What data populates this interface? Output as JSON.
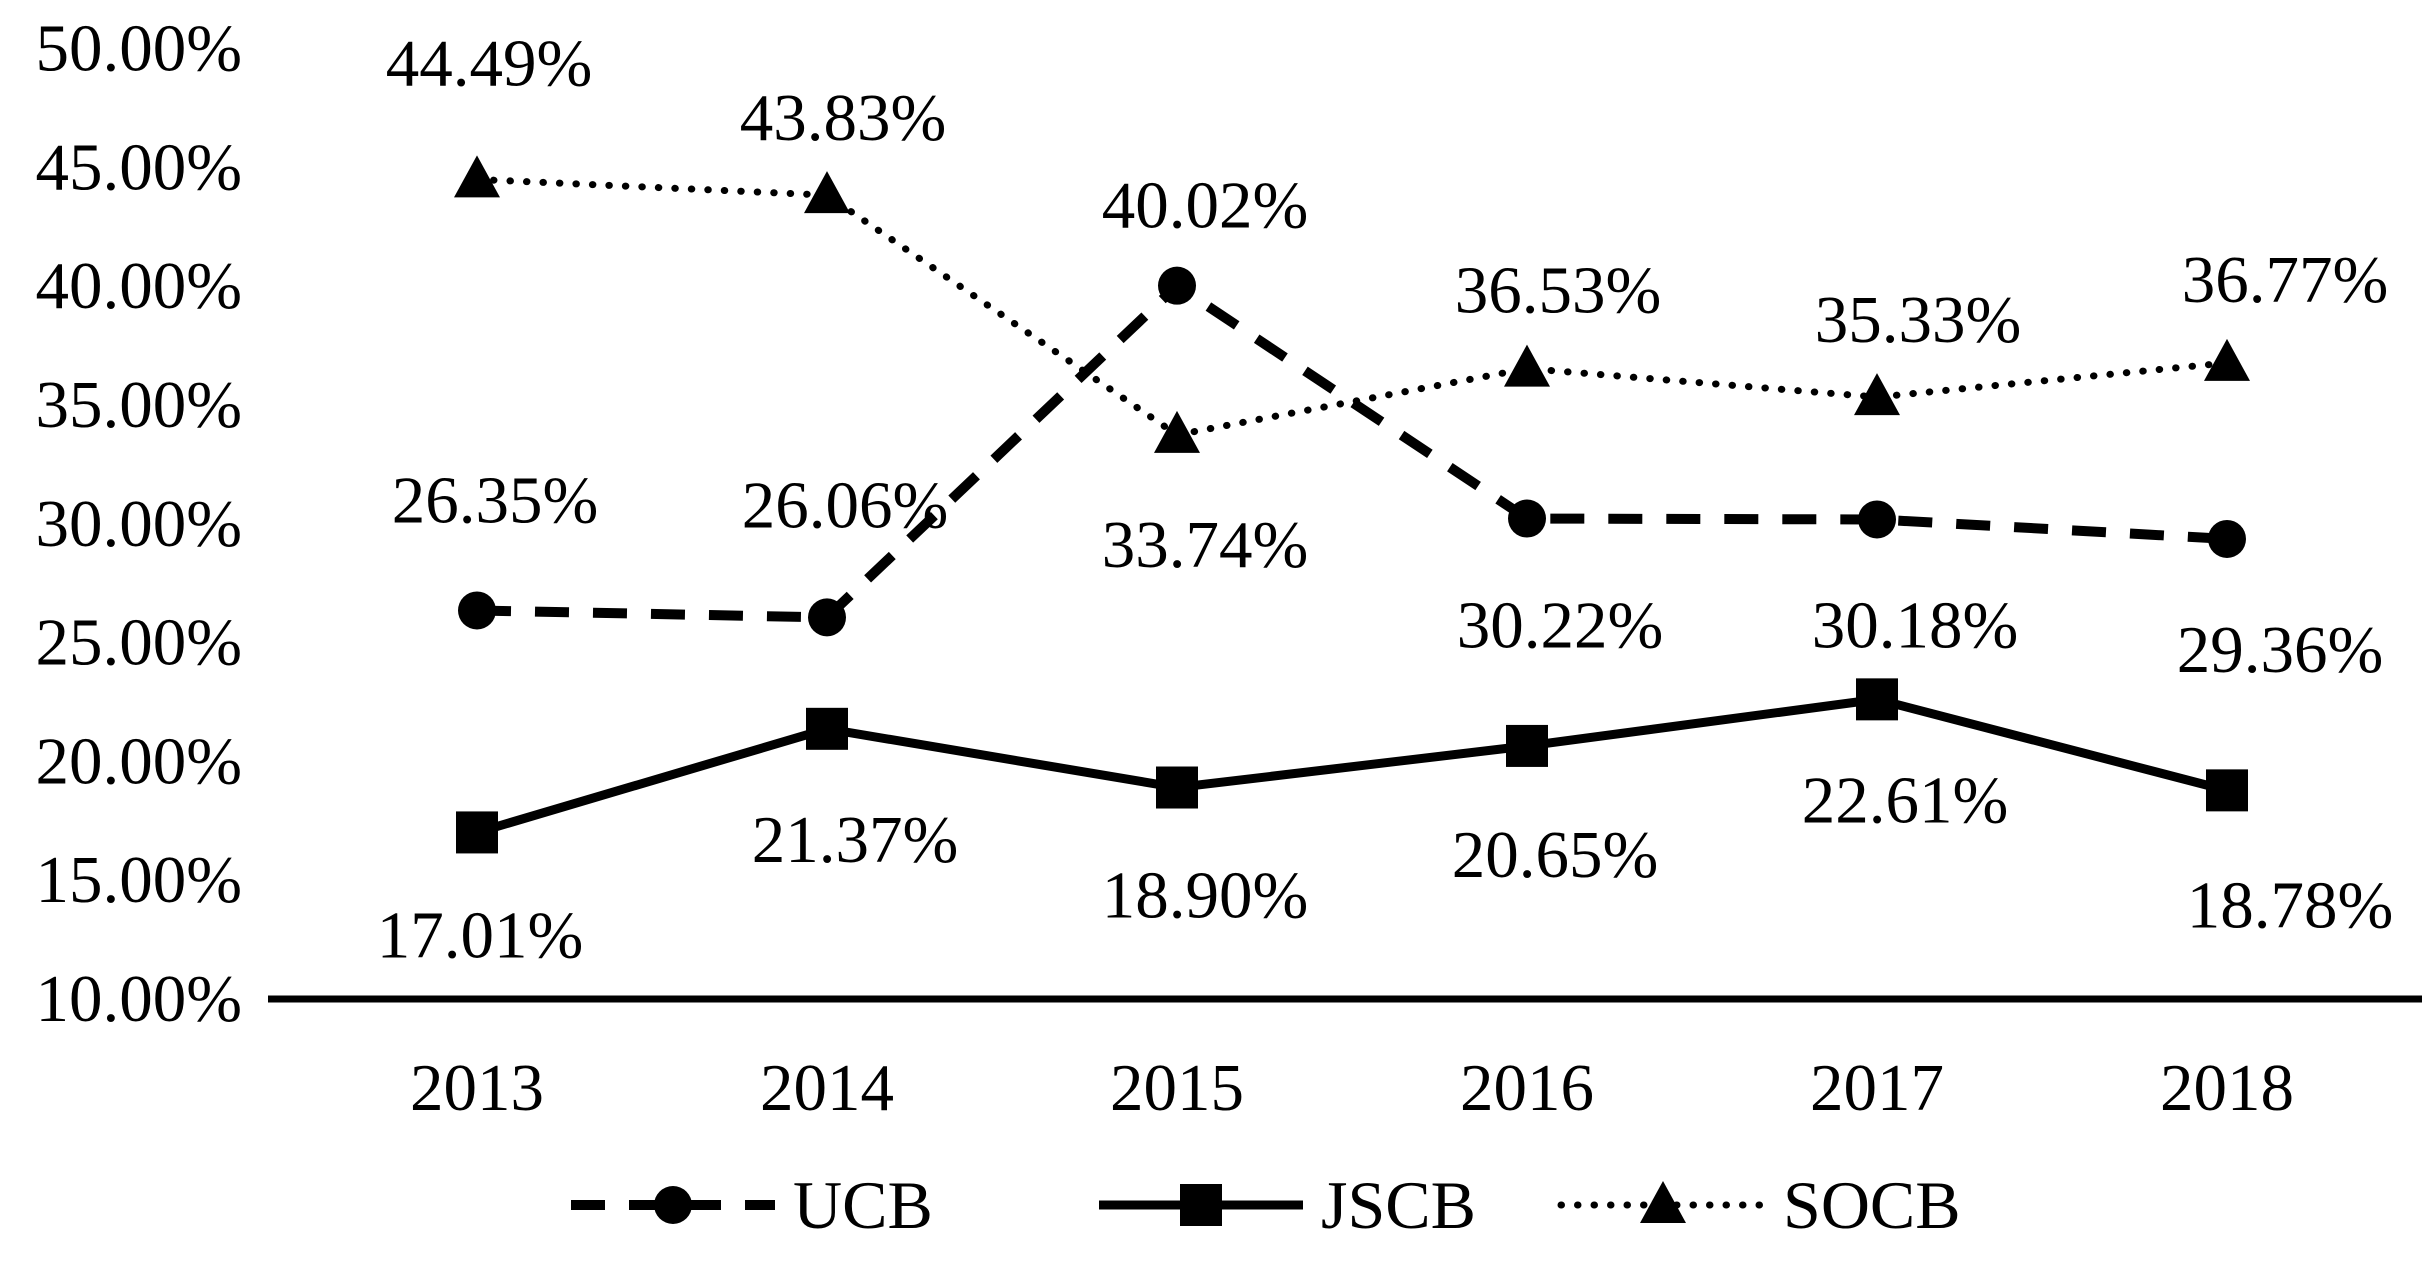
{
  "chart_data": {
    "type": "line",
    "title": "",
    "xlabel": "",
    "ylabel": "",
    "categories": [
      "2013",
      "2014",
      "2015",
      "2016",
      "2017",
      "2018"
    ],
    "y_ticks": [
      "50.00%",
      "45.00%",
      "40.00%",
      "35.00%",
      "30.00%",
      "25.00%",
      "20.00%",
      "15.00%",
      "10.00%"
    ],
    "ylim": [
      10,
      50
    ],
    "grid": false,
    "legend_position": "bottom",
    "colors": {
      "foreground": "#000000",
      "background": "#ffffff"
    },
    "series": [
      {
        "name": "UCB",
        "line": "dashed",
        "marker": "circle",
        "values": [
          26.35,
          26.06,
          40.02,
          30.22,
          30.18,
          29.36
        ],
        "labels": [
          "26.35%",
          "26.06%",
          "40.02%",
          "30.22%",
          "30.18%",
          "29.36%"
        ],
        "label_side": [
          "above",
          "above",
          "above",
          "below",
          "below",
          "below"
        ],
        "label_dx": [
          18,
          18,
          28,
          33,
          38,
          53
        ],
        "label_dy": [
          -110,
          -112,
          -80,
          107,
          106,
          111
        ]
      },
      {
        "name": "JSCB",
        "line": "solid",
        "marker": "square",
        "values": [
          17.01,
          21.37,
          18.9,
          20.65,
          22.61,
          18.78
        ],
        "labels": [
          "17.01%",
          "21.37%",
          "18.90%",
          "20.65%",
          "22.61%",
          "18.78%"
        ],
        "label_side": [
          "below",
          "below",
          "below",
          "below",
          "below",
          "below"
        ],
        "label_dx": [
          3,
          28,
          28,
          28,
          28,
          63
        ],
        "label_dy": [
          103,
          111,
          108,
          109,
          101,
          115
        ]
      },
      {
        "name": "SOCB",
        "line": "dotted",
        "marker": "triangle",
        "values": [
          44.49,
          43.83,
          33.74,
          36.53,
          35.33,
          36.77
        ],
        "labels": [
          "44.49%",
          "43.83%",
          "33.74%",
          "36.53%",
          "35.33%",
          "36.77%"
        ],
        "label_side": [
          "above",
          "above",
          "below",
          "above",
          "above",
          "above"
        ],
        "label_dx": [
          12,
          16,
          28,
          31,
          41,
          58
        ],
        "label_dy": [
          -116,
          -77,
          110,
          -78,
          -77,
          -83
        ]
      }
    ]
  }
}
